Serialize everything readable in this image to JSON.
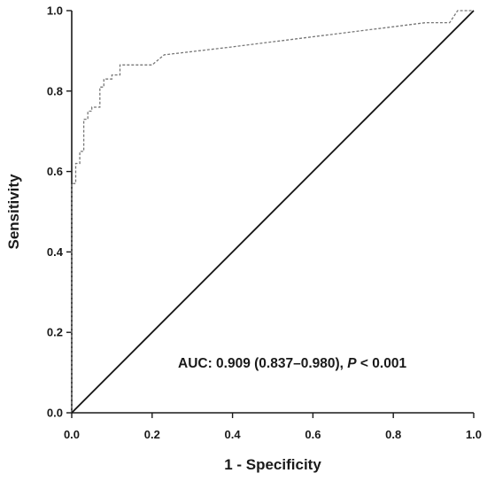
{
  "chart_data": {
    "type": "line",
    "xlabel": "1 - Specificity",
    "ylabel": "Sensitivity",
    "xlim": [
      0,
      1
    ],
    "ylim": [
      0,
      1
    ],
    "x_ticks": [
      "0.0",
      "0.2",
      "0.4",
      "0.6",
      "0.8",
      "1.0"
    ],
    "y_ticks": [
      "0.0",
      "0.2",
      "0.4",
      "0.6",
      "0.8",
      "1.0"
    ],
    "annotation": {
      "prefix": "AUC: 0.909 (0.837–0.980), ",
      "p_symbol": "P",
      "suffix": " < 0.001"
    },
    "grid": false,
    "legend": "none",
    "series": [
      {
        "style": "dashed",
        "color": "#777777",
        "x": [
          0.0,
          0.0,
          0.01,
          0.01,
          0.02,
          0.02,
          0.03,
          0.03,
          0.04,
          0.04,
          0.05,
          0.05,
          0.07,
          0.07,
          0.08,
          0.08,
          0.1,
          0.1,
          0.12,
          0.12,
          0.2,
          0.23,
          0.4,
          0.6,
          0.8,
          0.88,
          0.94,
          0.96,
          1.0
        ],
        "y": [
          0.0,
          0.57,
          0.57,
          0.62,
          0.62,
          0.65,
          0.65,
          0.73,
          0.73,
          0.75,
          0.75,
          0.76,
          0.76,
          0.81,
          0.81,
          0.83,
          0.83,
          0.84,
          0.84,
          0.865,
          0.865,
          0.89,
          0.91,
          0.935,
          0.96,
          0.97,
          0.97,
          1.0,
          1.0
        ]
      },
      {
        "style": "solid",
        "color": "#111111",
        "x": [
          0,
          1
        ],
        "y": [
          0,
          1
        ]
      }
    ]
  }
}
